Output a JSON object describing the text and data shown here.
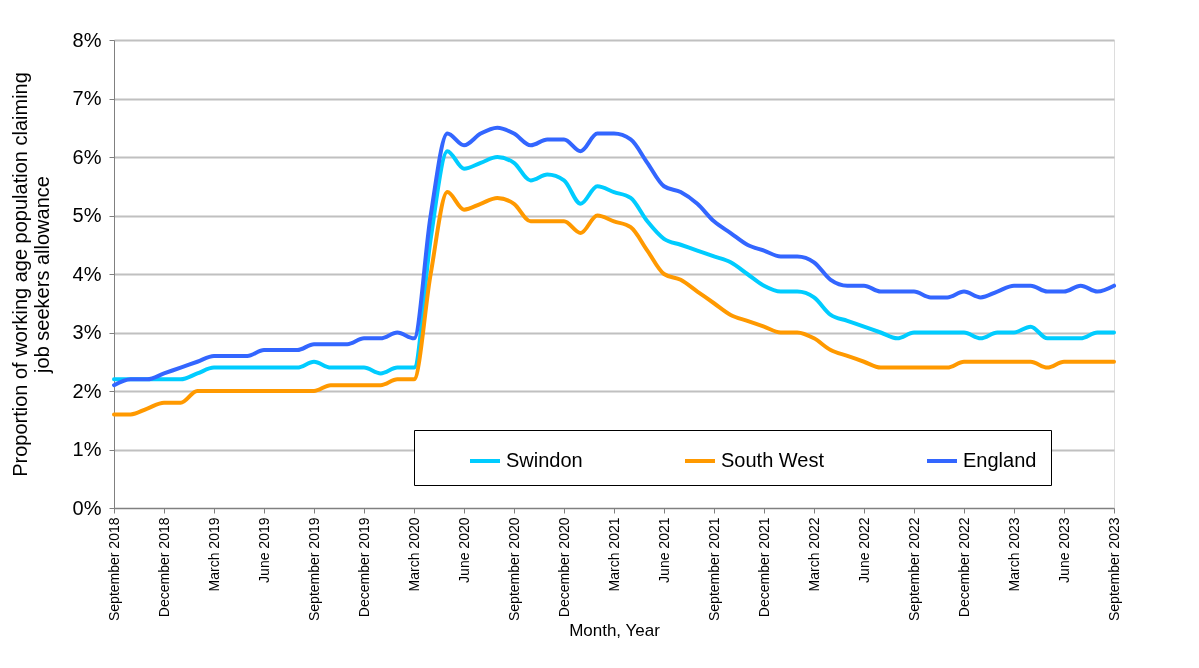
{
  "chart_data": {
    "type": "line",
    "xlabel": "Month, Year",
    "ylabel": "Proportion of working age population claiming job seekers allowance",
    "categories": [
      "September 2018",
      null,
      null,
      "December 2018",
      null,
      null,
      "March 2019",
      null,
      null,
      "June 2019",
      null,
      null,
      "September 2019",
      null,
      null,
      "December 2019",
      null,
      null,
      "March 2020",
      null,
      null,
      "June 2020",
      null,
      null,
      "September 2020",
      null,
      null,
      "December 2020",
      null,
      null,
      "March 2021",
      null,
      null,
      "June 2021",
      null,
      null,
      "September 2021",
      null,
      null,
      "December 2021",
      null,
      null,
      "March 2022",
      null,
      null,
      "June 2022",
      null,
      null,
      "September 2022",
      null,
      null,
      "December 2022",
      null,
      null,
      "March 2023",
      null,
      null,
      "June 2023",
      null,
      null,
      "September 2023"
    ],
    "series": [
      {
        "name": "Swindon",
        "color": "#00ccff",
        "values": [
          2.2,
          2.2,
          2.2,
          2.2,
          2.2,
          2.3,
          2.4,
          2.4,
          2.4,
          2.4,
          2.4,
          2.4,
          2.5,
          2.4,
          2.4,
          2.4,
          2.3,
          2.4,
          2.4,
          4.6,
          6.1,
          5.8,
          5.9,
          6.0,
          5.9,
          5.6,
          5.7,
          5.6,
          5.2,
          5.5,
          5.4,
          5.3,
          4.9,
          4.6,
          4.5,
          4.4,
          4.3,
          4.2,
          4.0,
          3.8,
          3.7,
          3.7,
          3.6,
          3.3,
          3.2,
          3.1,
          3.0,
          2.9,
          3.0,
          3.0,
          3.0,
          3.0,
          2.9,
          3.0,
          3.0,
          3.1,
          2.9,
          2.9,
          2.9,
          3.0,
          3.0
        ]
      },
      {
        "name": "South West",
        "color": "#ff9900",
        "values": [
          1.6,
          1.6,
          1.7,
          1.8,
          1.8,
          2.0,
          2.0,
          2.0,
          2.0,
          2.0,
          2.0,
          2.0,
          2.0,
          2.1,
          2.1,
          2.1,
          2.1,
          2.2,
          2.2,
          4.0,
          5.4,
          5.1,
          5.2,
          5.3,
          5.2,
          4.9,
          4.9,
          4.9,
          4.7,
          5.0,
          4.9,
          4.8,
          4.4,
          4.0,
          3.9,
          3.7,
          3.5,
          3.3,
          3.2,
          3.1,
          3.0,
          3.0,
          2.9,
          2.7,
          2.6,
          2.5,
          2.4,
          2.4,
          2.4,
          2.4,
          2.4,
          2.5,
          2.5,
          2.5,
          2.5,
          2.5,
          2.4,
          2.5,
          2.5,
          2.5,
          2.5
        ]
      },
      {
        "name": "England",
        "color": "#3366ff",
        "values": [
          2.1,
          2.2,
          2.2,
          2.3,
          2.4,
          2.5,
          2.6,
          2.6,
          2.6,
          2.7,
          2.7,
          2.7,
          2.8,
          2.8,
          2.8,
          2.9,
          2.9,
          3.0,
          2.9,
          5.0,
          6.4,
          6.2,
          6.4,
          6.5,
          6.4,
          6.2,
          6.3,
          6.3,
          6.1,
          6.4,
          6.4,
          6.3,
          5.9,
          5.5,
          5.4,
          5.2,
          4.9,
          4.7,
          4.5,
          4.4,
          4.3,
          4.3,
          4.2,
          3.9,
          3.8,
          3.8,
          3.7,
          3.7,
          3.7,
          3.6,
          3.6,
          3.7,
          3.6,
          3.7,
          3.8,
          3.8,
          3.7,
          3.7,
          3.8,
          3.7,
          3.8
        ]
      }
    ],
    "ylim": [
      0,
      8
    ],
    "yticks": [
      {
        "value": 0,
        "label": "0%"
      },
      {
        "value": 1,
        "label": "1%"
      },
      {
        "value": 2,
        "label": "2%"
      },
      {
        "value": 3,
        "label": "3%"
      },
      {
        "value": 4,
        "label": "4%"
      },
      {
        "value": 5,
        "label": "5%"
      },
      {
        "value": 6,
        "label": "6%"
      },
      {
        "value": 7,
        "label": "7%"
      },
      {
        "value": 8,
        "label": "8%"
      }
    ],
    "grid": "y",
    "legend": "bottom right",
    "marker": "none",
    "line_style": "solid"
  }
}
